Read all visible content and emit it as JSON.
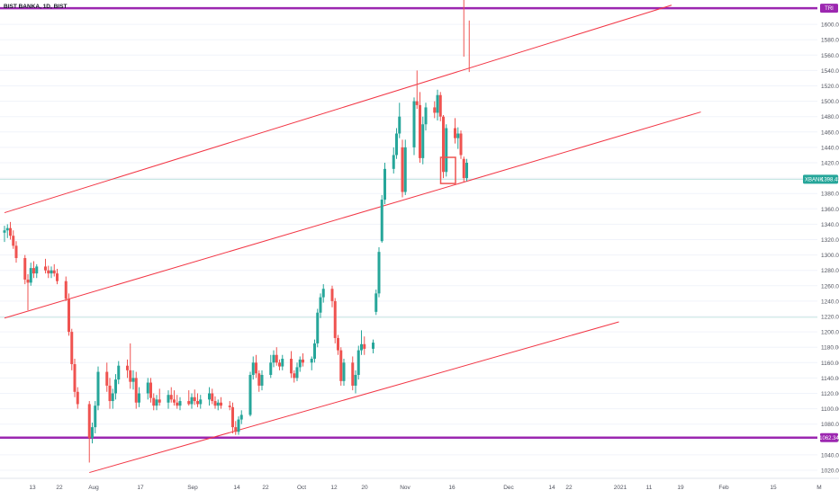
{
  "chart_data": {
    "type": "candlestick",
    "title": "BIST BANKA, 1D, BIST",
    "y_axis": {
      "range": [
        1010,
        1635
      ],
      "ticks": [
        1020,
        1040,
        1060,
        1080,
        1100,
        1120,
        1140,
        1160,
        1180,
        1200,
        1220,
        1240,
        1260,
        1280,
        1300,
        1320,
        1340,
        1360,
        1380,
        1400,
        1420,
        1440,
        1460,
        1480,
        1500,
        1520,
        1540,
        1560,
        1580,
        1600
      ],
      "tick_labels": [
        "1020.00",
        "1040.00",
        "1060.00",
        "1080.00",
        "1100.00",
        "1120.00",
        "1140.00",
        "1160.00",
        "1180.00",
        "1200.00",
        "1220.00",
        "1240.00",
        "1260.00",
        "1280.00",
        "1300.00",
        "1320.00",
        "1340.00",
        "1360.00",
        "1380.00",
        "1400.00",
        "1420.00",
        "1440.00",
        "1460.00",
        "1480.00",
        "1500.00",
        "1520.00",
        "1540.00",
        "1560.00",
        "1580.00",
        "1600.00"
      ]
    },
    "x_axis": {
      "tick_labels": [
        "13",
        "22",
        "Aug",
        "17",
        "Sep",
        "14",
        "22",
        "Oct",
        "12",
        "20",
        "Nov",
        "16",
        "Dec",
        "14",
        "22",
        "2021",
        "11",
        "19",
        "Feb",
        "15",
        "M"
      ]
    },
    "last_price": {
      "value": 1398.45,
      "label": "XBANK",
      "value_label": "1398.45",
      "color": "#26a69a"
    },
    "horizontal_levels": [
      {
        "value": 1621,
        "label": "TRI",
        "color": "#9c27b0"
      },
      {
        "value": 1062.34,
        "label": "1062.34",
        "color": "#9c27b0"
      }
    ],
    "reference_level": 1219,
    "colors": {
      "up": "#26a69a",
      "down": "#ef5350",
      "channel": "#f23645",
      "level": "#9c27b0",
      "grid": "#f0f3fa"
    },
    "channel_lines": [
      {
        "name": "upper",
        "from": [
          "2020-07-06",
          1355
        ],
        "to": [
          "2021-02-19",
          1625
        ]
      },
      {
        "name": "middle",
        "from": [
          "2020-07-06",
          1218
        ],
        "to": [
          "2021-03-01",
          1486
        ]
      },
      {
        "name": "lower",
        "from": [
          "2020-08-04",
          1017
        ],
        "to": [
          "2021-02-01",
          1213
        ]
      }
    ],
    "highlight": {
      "from": "2020-12-03",
      "to": "2020-12-05",
      "low": 1393,
      "high": 1427
    },
    "spike": {
      "date": "2020-12-10",
      "segments": [
        [
          1558,
          1635
        ],
        [
          1538,
          1605
        ]
      ]
    },
    "candles": [
      {
        "d": "2020-07-06",
        "o": 1329,
        "h": 1338,
        "l": 1317,
        "c": 1332
      },
      {
        "d": "2020-07-07",
        "o": 1332,
        "h": 1340,
        "l": 1322,
        "c": 1335
      },
      {
        "d": "2020-07-08",
        "o": 1335,
        "h": 1343,
        "l": 1320,
        "c": 1325
      },
      {
        "d": "2020-07-09",
        "o": 1325,
        "h": 1332,
        "l": 1308,
        "c": 1312
      },
      {
        "d": "2020-07-10",
        "o": 1312,
        "h": 1318,
        "l": 1290,
        "c": 1296
      },
      {
        "d": "2020-07-13",
        "o": 1296,
        "h": 1300,
        "l": 1262,
        "c": 1268
      },
      {
        "d": "2020-07-14",
        "o": 1268,
        "h": 1275,
        "l": 1228,
        "c": 1264
      },
      {
        "d": "2020-07-15",
        "o": 1264,
        "h": 1290,
        "l": 1260,
        "c": 1283
      },
      {
        "d": "2020-07-16",
        "o": 1283,
        "h": 1292,
        "l": 1270,
        "c": 1276
      },
      {
        "d": "2020-07-17",
        "o": 1276,
        "h": 1288,
        "l": 1270,
        "c": 1285
      },
      {
        "d": "2020-07-20",
        "o": 1285,
        "h": 1295,
        "l": 1276,
        "c": 1280
      },
      {
        "d": "2020-07-21",
        "o": 1280,
        "h": 1286,
        "l": 1270,
        "c": 1276
      },
      {
        "d": "2020-07-22",
        "o": 1276,
        "h": 1285,
        "l": 1270,
        "c": 1280
      },
      {
        "d": "2020-07-23",
        "o": 1280,
        "h": 1288,
        "l": 1272,
        "c": 1276
      },
      {
        "d": "2020-07-24",
        "o": 1276,
        "h": 1282,
        "l": 1262,
        "c": 1266
      },
      {
        "d": "2020-07-27",
        "o": 1266,
        "h": 1272,
        "l": 1240,
        "c": 1243
      },
      {
        "d": "2020-07-28",
        "o": 1243,
        "h": 1250,
        "l": 1195,
        "c": 1200
      },
      {
        "d": "2020-07-29",
        "o": 1200,
        "h": 1204,
        "l": 1150,
        "c": 1158
      },
      {
        "d": "2020-07-30",
        "o": 1158,
        "h": 1165,
        "l": 1115,
        "c": 1122
      },
      {
        "d": "2020-07-31",
        "o": 1122,
        "h": 1128,
        "l": 1100,
        "c": 1106
      },
      {
        "d": "2020-08-04",
        "o": 1106,
        "h": 1110,
        "l": 1030,
        "c": 1062
      },
      {
        "d": "2020-08-05",
        "o": 1062,
        "h": 1082,
        "l": 1055,
        "c": 1076
      },
      {
        "d": "2020-08-06",
        "o": 1076,
        "h": 1110,
        "l": 1068,
        "c": 1104
      },
      {
        "d": "2020-08-07",
        "o": 1104,
        "h": 1155,
        "l": 1098,
        "c": 1148
      },
      {
        "d": "2020-08-10",
        "o": 1148,
        "h": 1160,
        "l": 1122,
        "c": 1130
      },
      {
        "d": "2020-08-11",
        "o": 1130,
        "h": 1140,
        "l": 1100,
        "c": 1110
      },
      {
        "d": "2020-08-12",
        "o": 1110,
        "h": 1126,
        "l": 1100,
        "c": 1120
      },
      {
        "d": "2020-08-13",
        "o": 1120,
        "h": 1145,
        "l": 1112,
        "c": 1138
      },
      {
        "d": "2020-08-14",
        "o": 1138,
        "h": 1162,
        "l": 1132,
        "c": 1156
      },
      {
        "d": "2020-08-17",
        "o": 1156,
        "h": 1164,
        "l": 1140,
        "c": 1150
      },
      {
        "d": "2020-08-18",
        "o": 1150,
        "h": 1185,
        "l": 1126,
        "c": 1135
      },
      {
        "d": "2020-08-19",
        "o": 1135,
        "h": 1150,
        "l": 1125,
        "c": 1140
      },
      {
        "d": "2020-08-20",
        "o": 1140,
        "h": 1148,
        "l": 1100,
        "c": 1108
      },
      {
        "d": "2020-08-21",
        "o": 1108,
        "h": 1128,
        "l": 1102,
        "c": 1120
      },
      {
        "d": "2020-08-24",
        "o": 1120,
        "h": 1140,
        "l": 1112,
        "c": 1134
      },
      {
        "d": "2020-08-25",
        "o": 1134,
        "h": 1140,
        "l": 1108,
        "c": 1114
      },
      {
        "d": "2020-08-26",
        "o": 1114,
        "h": 1120,
        "l": 1098,
        "c": 1104
      },
      {
        "d": "2020-08-27",
        "o": 1104,
        "h": 1118,
        "l": 1098,
        "c": 1112
      },
      {
        "d": "2020-08-28",
        "o": 1112,
        "h": 1126,
        "l": 1104,
        "c": 1108
      },
      {
        "d": "2020-08-31",
        "o": 1108,
        "h": 1124,
        "l": 1100,
        "c": 1118
      },
      {
        "d": "2020-09-01",
        "o": 1118,
        "h": 1128,
        "l": 1108,
        "c": 1112
      },
      {
        "d": "2020-09-02",
        "o": 1112,
        "h": 1124,
        "l": 1104,
        "c": 1108
      },
      {
        "d": "2020-09-03",
        "o": 1108,
        "h": 1118,
        "l": 1100,
        "c": 1104
      },
      {
        "d": "2020-09-04",
        "o": 1104,
        "h": 1115,
        "l": 1098,
        "c": 1110
      },
      {
        "d": "2020-09-07",
        "o": 1110,
        "h": 1124,
        "l": 1104,
        "c": 1106
      },
      {
        "d": "2020-09-08",
        "o": 1106,
        "h": 1120,
        "l": 1100,
        "c": 1115
      },
      {
        "d": "2020-09-09",
        "o": 1115,
        "h": 1125,
        "l": 1105,
        "c": 1110
      },
      {
        "d": "2020-09-10",
        "o": 1110,
        "h": 1120,
        "l": 1102,
        "c": 1106
      },
      {
        "d": "2020-09-11",
        "o": 1106,
        "h": 1118,
        "l": 1100,
        "c": 1112
      },
      {
        "d": "2020-09-14",
        "o": 1112,
        "h": 1128,
        "l": 1104,
        "c": 1120
      },
      {
        "d": "2020-09-15",
        "o": 1120,
        "h": 1126,
        "l": 1106,
        "c": 1110
      },
      {
        "d": "2020-09-16",
        "o": 1110,
        "h": 1116,
        "l": 1100,
        "c": 1104
      },
      {
        "d": "2020-09-17",
        "o": 1104,
        "h": 1112,
        "l": 1098,
        "c": 1108
      },
      {
        "d": "2020-09-18",
        "o": 1108,
        "h": 1115,
        "l": 1100,
        "c": 1104
      },
      {
        "d": "2020-09-21",
        "o": 1104,
        "h": 1110,
        "l": 1098,
        "c": 1102
      },
      {
        "d": "2020-09-22",
        "o": 1102,
        "h": 1108,
        "l": 1068,
        "c": 1076
      },
      {
        "d": "2020-09-23",
        "o": 1076,
        "h": 1084,
        "l": 1066,
        "c": 1070
      },
      {
        "d": "2020-09-24",
        "o": 1070,
        "h": 1090,
        "l": 1066,
        "c": 1086
      },
      {
        "d": "2020-09-25",
        "o": 1086,
        "h": 1098,
        "l": 1080,
        "c": 1092
      },
      {
        "d": "2020-09-28",
        "o": 1092,
        "h": 1148,
        "l": 1090,
        "c": 1144
      },
      {
        "d": "2020-09-29",
        "o": 1144,
        "h": 1168,
        "l": 1138,
        "c": 1160
      },
      {
        "d": "2020-09-30",
        "o": 1160,
        "h": 1170,
        "l": 1140,
        "c": 1146
      },
      {
        "d": "2020-10-01",
        "o": 1146,
        "h": 1150,
        "l": 1122,
        "c": 1130
      },
      {
        "d": "2020-10-02",
        "o": 1130,
        "h": 1150,
        "l": 1124,
        "c": 1144
      },
      {
        "d": "2020-10-05",
        "o": 1144,
        "h": 1170,
        "l": 1140,
        "c": 1160
      },
      {
        "d": "2020-10-06",
        "o": 1160,
        "h": 1176,
        "l": 1154,
        "c": 1170
      },
      {
        "d": "2020-10-07",
        "o": 1170,
        "h": 1180,
        "l": 1156,
        "c": 1160
      },
      {
        "d": "2020-10-08",
        "o": 1160,
        "h": 1164,
        "l": 1150,
        "c": 1155
      },
      {
        "d": "2020-10-09",
        "o": 1155,
        "h": 1170,
        "l": 1150,
        "c": 1165
      },
      {
        "d": "2020-10-12",
        "o": 1165,
        "h": 1175,
        "l": 1140,
        "c": 1146
      },
      {
        "d": "2020-10-13",
        "o": 1146,
        "h": 1150,
        "l": 1134,
        "c": 1140
      },
      {
        "d": "2020-10-14",
        "o": 1140,
        "h": 1160,
        "l": 1136,
        "c": 1154
      },
      {
        "d": "2020-10-15",
        "o": 1154,
        "h": 1168,
        "l": 1148,
        "c": 1164
      },
      {
        "d": "2020-10-16",
        "o": 1164,
        "h": 1172,
        "l": 1155,
        "c": 1160
      },
      {
        "d": "2020-10-19",
        "o": 1160,
        "h": 1168,
        "l": 1150,
        "c": 1165
      },
      {
        "d": "2020-10-20",
        "o": 1165,
        "h": 1190,
        "l": 1160,
        "c": 1185
      },
      {
        "d": "2020-10-21",
        "o": 1185,
        "h": 1230,
        "l": 1180,
        "c": 1225
      },
      {
        "d": "2020-10-22",
        "o": 1225,
        "h": 1250,
        "l": 1218,
        "c": 1245
      },
      {
        "d": "2020-10-23",
        "o": 1245,
        "h": 1262,
        "l": 1238,
        "c": 1256
      },
      {
        "d": "2020-10-26",
        "o": 1256,
        "h": 1260,
        "l": 1232,
        "c": 1240
      },
      {
        "d": "2020-10-27",
        "o": 1240,
        "h": 1244,
        "l": 1185,
        "c": 1192
      },
      {
        "d": "2020-10-28",
        "o": 1192,
        "h": 1196,
        "l": 1170,
        "c": 1176
      },
      {
        "d": "2020-10-29",
        "o": 1176,
        "h": 1180,
        "l": 1130,
        "c": 1136
      },
      {
        "d": "2020-10-30",
        "o": 1136,
        "h": 1165,
        "l": 1130,
        "c": 1160
      },
      {
        "d": "2020-11-02",
        "o": 1160,
        "h": 1168,
        "l": 1124,
        "c": 1130
      },
      {
        "d": "2020-11-03",
        "o": 1130,
        "h": 1150,
        "l": 1120,
        "c": 1144
      },
      {
        "d": "2020-11-04",
        "o": 1144,
        "h": 1182,
        "l": 1138,
        "c": 1176
      },
      {
        "d": "2020-11-05",
        "o": 1176,
        "h": 1202,
        "l": 1170,
        "c": 1184
      },
      {
        "d": "2020-11-06",
        "o": 1184,
        "h": 1194,
        "l": 1170,
        "c": 1178
      },
      {
        "d": "2020-11-09",
        "o": 1178,
        "h": 1190,
        "l": 1172,
        "c": 1186
      },
      {
        "d": "2020-11-10",
        "o": 1226,
        "h": 1255,
        "l": 1222,
        "c": 1250
      },
      {
        "d": "2020-11-11",
        "o": 1250,
        "h": 1310,
        "l": 1245,
        "c": 1304
      },
      {
        "d": "2020-11-12",
        "o": 1318,
        "h": 1378,
        "l": 1316,
        "c": 1372
      },
      {
        "d": "2020-11-13",
        "o": 1372,
        "h": 1420,
        "l": 1366,
        "c": 1412
      },
      {
        "d": "2020-11-16",
        "o": 1412,
        "h": 1440,
        "l": 1406,
        "c": 1430
      },
      {
        "d": "2020-11-17",
        "o": 1430,
        "h": 1465,
        "l": 1425,
        "c": 1458
      },
      {
        "d": "2020-11-18",
        "o": 1458,
        "h": 1498,
        "l": 1452,
        "c": 1480
      },
      {
        "d": "2020-11-19",
        "o": 1440,
        "h": 1450,
        "l": 1375,
        "c": 1382
      },
      {
        "d": "2020-11-20",
        "o": 1382,
        "h": 1450,
        "l": 1378,
        "c": 1440
      },
      {
        "d": "2020-11-23",
        "o": 1440,
        "h": 1505,
        "l": 1430,
        "c": 1500
      },
      {
        "d": "2020-11-24",
        "o": 1500,
        "h": 1540,
        "l": 1490,
        "c": 1495
      },
      {
        "d": "2020-11-25",
        "o": 1495,
        "h": 1512,
        "l": 1420,
        "c": 1426
      },
      {
        "d": "2020-11-26",
        "o": 1426,
        "h": 1480,
        "l": 1418,
        "c": 1470
      },
      {
        "d": "2020-11-27",
        "o": 1470,
        "h": 1498,
        "l": 1462,
        "c": 1492
      },
      {
        "d": "2020-11-30",
        "o": 1492,
        "h": 1500,
        "l": 1478,
        "c": 1485
      },
      {
        "d": "2020-12-01",
        "o": 1485,
        "h": 1515,
        "l": 1475,
        "c": 1508
      },
      {
        "d": "2020-12-02",
        "o": 1508,
        "h": 1512,
        "l": 1474,
        "c": 1480
      },
      {
        "d": "2020-12-03",
        "o": 1480,
        "h": 1482,
        "l": 1400,
        "c": 1408
      },
      {
        "d": "2020-12-04",
        "o": 1408,
        "h": 1470,
        "l": 1402,
        "c": 1465
      },
      {
        "d": "2020-12-07",
        "o": 1465,
        "h": 1478,
        "l": 1445,
        "c": 1452
      },
      {
        "d": "2020-12-08",
        "o": 1452,
        "h": 1466,
        "l": 1438,
        "c": 1458
      },
      {
        "d": "2020-12-09",
        "o": 1458,
        "h": 1462,
        "l": 1425,
        "c": 1430
      },
      {
        "d": "2020-12-10",
        "o": 1425,
        "h": 1428,
        "l": 1395,
        "c": 1400
      },
      {
        "d": "2020-12-11",
        "o": 1400,
        "h": 1425,
        "l": 1396,
        "c": 1420
      }
    ]
  }
}
